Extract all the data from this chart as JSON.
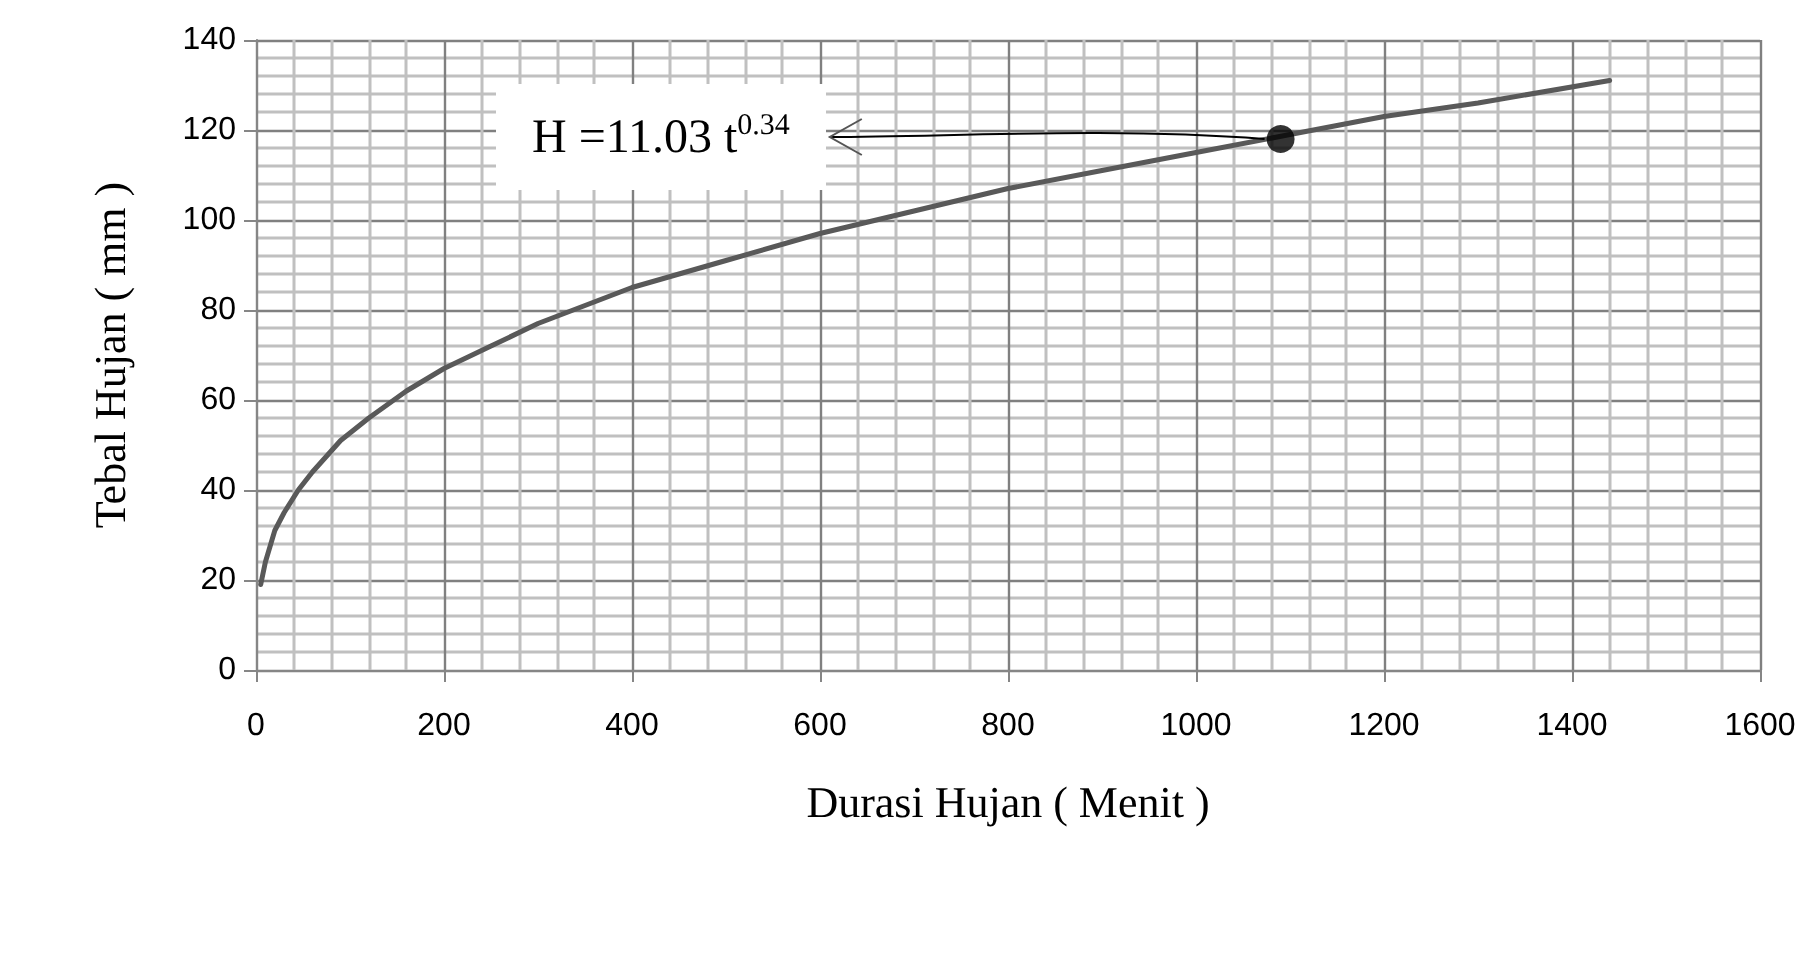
{
  "chart_data": {
    "type": "line",
    "xlabel": "Durasi Hujan ( Menit )",
    "ylabel": "Tebal Hujan ( mm )",
    "xlim": [
      0,
      1600
    ],
    "xticks": [
      0,
      200,
      400,
      600,
      800,
      1000,
      1200,
      1400,
      1600
    ],
    "ylim": [
      0,
      140
    ],
    "yticks": [
      0,
      20,
      40,
      60,
      80,
      100,
      120,
      140
    ],
    "grid": true,
    "marker": "none",
    "line_style": "solid",
    "annotations": [
      {
        "text": "H =11.03 t$^{0.34}$",
        "x": 1090,
        "y": 118
      }
    ],
    "series": [
      {
        "color": "#595959",
        "x": [
          5,
          10,
          20,
          30,
          45,
          60,
          90,
          120,
          160,
          200,
          250,
          300,
          400,
          500,
          600,
          700,
          800,
          900,
          1000,
          1100,
          1200,
          1300,
          1440
        ],
        "values": [
          19,
          24,
          31,
          35,
          40,
          44,
          51,
          56,
          62,
          67,
          72,
          77,
          85,
          91,
          97,
          102,
          107,
          111,
          115,
          119,
          123,
          126,
          131
        ]
      },
      {
        "type": "scatter",
        "marker": "circle",
        "color": "#000000",
        "x": [
          1090
        ],
        "values": [
          118
        ]
      }
    ]
  }
}
